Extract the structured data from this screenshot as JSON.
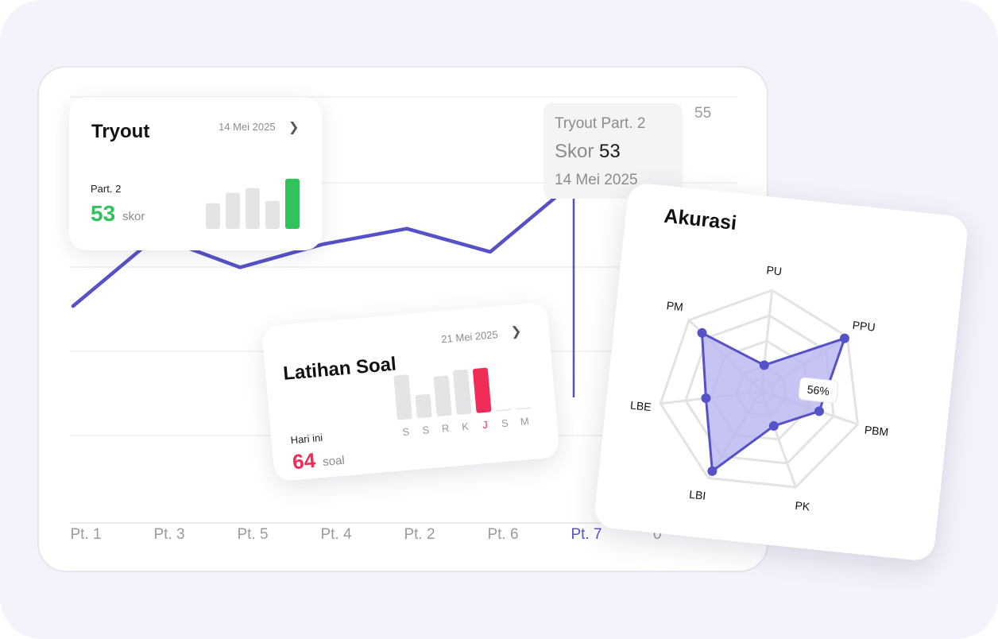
{
  "chart_data": [
    {
      "type": "line",
      "categories": [
        "Pt. 1",
        "Pt. 3",
        "Pt. 5",
        "Pt. 4",
        "Pt. 2",
        "Pt. 6",
        "Pt. 7"
      ],
      "values": [
        28,
        37,
        33,
        36,
        38,
        35,
        44
      ],
      "highlight_index": 6,
      "y_tick_labels": [
        "55",
        "0"
      ],
      "ylim": [
        0,
        55
      ],
      "grid": true,
      "colors": {
        "line": "#5552c7",
        "highlight_label": "#5552c7"
      },
      "tooltip": {
        "title": "Tryout Part. 2",
        "score_label": "Skor",
        "score_value": "53",
        "date": "14 Mei 2025"
      }
    },
    {
      "type": "bar",
      "title": "Tryout",
      "date": "14 Mei 2025",
      "subtitle": "Part. 2",
      "value": "53",
      "unit": "skor",
      "values": [
        22,
        31,
        35,
        24,
        43
      ],
      "highlight_index": 4,
      "colors": {
        "bar": "#e4e4e7",
        "highlight": "#32c25c",
        "value": "#32c25c"
      }
    },
    {
      "type": "bar",
      "title": "Latihan Soal",
      "date": "21 Mei 2025",
      "subtitle": "Hari ini",
      "value": "64",
      "unit": "soal",
      "categories": [
        "S",
        "S",
        "R",
        "K",
        "J",
        "S",
        "M"
      ],
      "values": [
        42,
        22,
        38,
        42,
        42,
        0,
        0
      ],
      "highlight_index": 4,
      "colors": {
        "bar": "#e4e4e7",
        "highlight": "#ef2d57",
        "value": "#ef2d57"
      }
    },
    {
      "type": "radar",
      "title": "Akurasi",
      "axes": [
        "PU",
        "PPU",
        "PBM",
        "PK",
        "LBI",
        "LBE",
        "PM"
      ],
      "values": [
        0.26,
        0.97,
        0.6,
        0.36,
        0.92,
        0.55,
        0.82
      ],
      "max": 1,
      "annotation": "56%",
      "colors": {
        "line": "#5552c7",
        "fill": "#b8b5f0",
        "grid": "#e3e3e6"
      }
    }
  ],
  "chevron_icon": "chevron-right-icon"
}
